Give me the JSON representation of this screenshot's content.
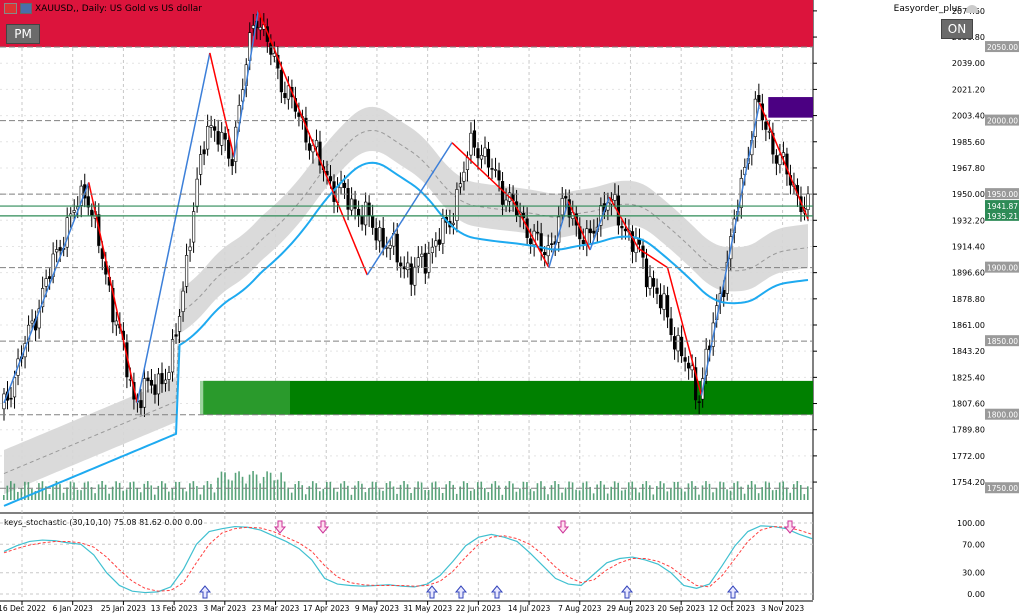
{
  "window": {
    "title": "XAUUSD,, Daily:  US Gold vs US dollar",
    "ea_name": "Easyorder_plus",
    "pm_button": "PM",
    "on_button": "ON"
  },
  "colors": {
    "background": "#ffffff",
    "supply_zone": "#dc143c",
    "demand_zone": "#008000",
    "ma_line": "#1eaaf0",
    "zigzag_up": "#3c7fd9",
    "zigzag_down": "#ff0000",
    "order_block": "#4b0082",
    "level_line": "#2e8b57",
    "stoch_main": "#40c0d0",
    "stoch_signal": "#ff4040",
    "arrow_up": "#3344bb",
    "arrow_down": "#cc3399"
  },
  "chart_data": {
    "type": "candlestick",
    "symbol": "XAUUSD",
    "timeframe": "Daily",
    "ylim": [
      1742,
      2082
    ],
    "price_ticks": [
      "2074.60",
      "2056.80",
      "2039.00",
      "2021.20",
      "2003.40",
      "1985.60",
      "1967.80",
      "1950.00",
      "1932.20",
      "1914.40",
      "1896.60",
      "1878.80",
      "1861.00",
      "1843.20",
      "1825.40",
      "1807.60",
      "1789.80",
      "1772.00",
      "1754.20"
    ],
    "level_labels": [
      {
        "price": 2050.0,
        "label": "2050.00"
      },
      {
        "price": 2000.0,
        "label": "2000.00"
      },
      {
        "price": 1950.0,
        "label": "1950.00"
      },
      {
        "price": 1941.87,
        "label": "1941.87",
        "kind": "green"
      },
      {
        "price": 1935.21,
        "label": "1935.21",
        "kind": "green"
      },
      {
        "price": 1900.0,
        "label": "1900.00"
      },
      {
        "price": 1850.0,
        "label": "1850.00"
      },
      {
        "price": 1800.0,
        "label": "1800.00"
      },
      {
        "price": 1750.0,
        "label": "1750.00"
      }
    ],
    "date_labels": [
      "16 Dec 2022",
      "6 Jan 2023",
      "25 Jan 2023",
      "13 Feb 2023",
      "3 Mar 2023",
      "23 Mar 2023",
      "17 Apr 2023",
      "9 May 2023",
      "31 May 2023",
      "22 Jun 2023",
      "14 Jul 2023",
      "7 Aug 2023",
      "29 Aug 2023",
      "20 Sep 2023",
      "12 Oct 2023",
      "3 Nov 2023"
    ],
    "zones": [
      {
        "name": "supply",
        "from": 2050,
        "to": 2082,
        "x_start": 0,
        "x_end": 1
      },
      {
        "name": "demand",
        "from": 1800,
        "to": 1823,
        "x_start": 0.25,
        "x_end": 1
      },
      {
        "name": "order-block",
        "from": 2002,
        "to": 2016,
        "x_start": 0.945,
        "x_end": 1
      }
    ],
    "stochastic": {
      "name": "keys_stochastic (30,10,10) 75.08 81.62 0.00 0.00",
      "levels": [
        "100.00",
        "70.00",
        "30.00",
        "0.00"
      ],
      "main": [
        60,
        68,
        74,
        76,
        75,
        72,
        70,
        55,
        30,
        12,
        4,
        2,
        3,
        10,
        35,
        70,
        88,
        92,
        95,
        94,
        90,
        82,
        74,
        64,
        48,
        22,
        14,
        12,
        11,
        12,
        13,
        11,
        10,
        14,
        26,
        46,
        68,
        80,
        84,
        80,
        74,
        58,
        40,
        22,
        14,
        12,
        28,
        44,
        50,
        52,
        48,
        42,
        30,
        12,
        8,
        14,
        40,
        68,
        88,
        96,
        95,
        92,
        84,
        78
      ],
      "signal": [
        58,
        64,
        69,
        72,
        74,
        74,
        72,
        66,
        52,
        34,
        18,
        8,
        4,
        5,
        16,
        44,
        70,
        86,
        92,
        94,
        93,
        88,
        80,
        72,
        60,
        40,
        24,
        16,
        13,
        12,
        12,
        12,
        11,
        12,
        18,
        32,
        52,
        70,
        80,
        82,
        78,
        70,
        56,
        38,
        24,
        16,
        20,
        34,
        44,
        50,
        50,
        46,
        38,
        24,
        12,
        10,
        26,
        50,
        74,
        90,
        95,
        94,
        90,
        84
      ]
    }
  }
}
